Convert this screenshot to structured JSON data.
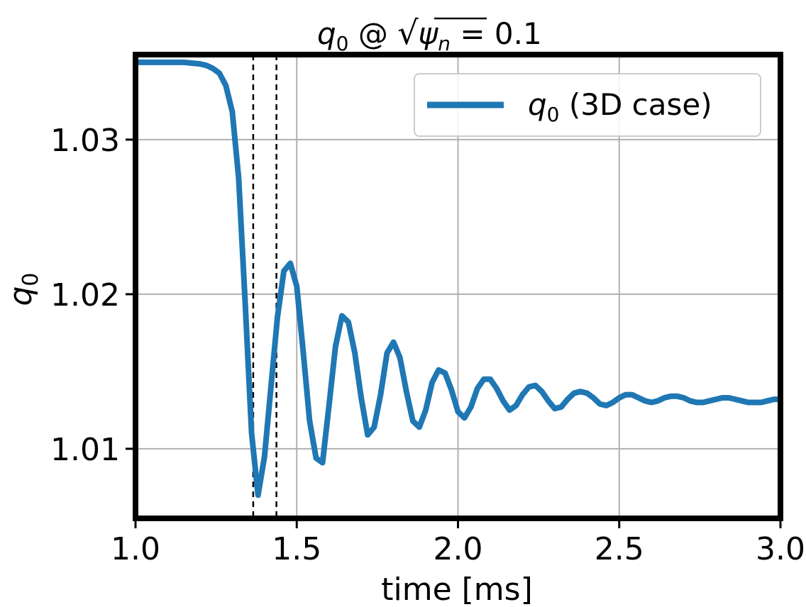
{
  "chart_data": {
    "type": "line",
    "title": "q₀ @ √ψₙ = 0.1",
    "title_parts": {
      "var": "q",
      "sub": "0",
      "at": " @ ",
      "sqrt_var": "ψ",
      "sqrt_sub": "n",
      "rest": " = 0.1"
    },
    "xlabel": "time [ms]",
    "ylabel": "q₀",
    "ylabel_parts": {
      "var": "q",
      "sub": "0"
    },
    "xlim": [
      1.0,
      3.0
    ],
    "ylim": [
      1.0055,
      1.0355
    ],
    "xticks": [
      1.0,
      1.5,
      2.0,
      2.5,
      3.0
    ],
    "xtick_labels": [
      "1.0",
      "1.5",
      "2.0",
      "2.5",
      "3.0"
    ],
    "yticks": [
      1.01,
      1.02,
      1.03
    ],
    "ytick_labels": [
      "1.01",
      "1.02",
      "1.03"
    ],
    "grid": true,
    "legend_position": "upper right",
    "vlines": [
      1.365,
      1.437
    ],
    "series": [
      {
        "name": "q₀ (3D case)",
        "name_parts": {
          "var": "q",
          "sub": "0",
          "rest": " (3D case)"
        },
        "color": "#1f77b4",
        "x": [
          1.0,
          1.05,
          1.1,
          1.15,
          1.2,
          1.22,
          1.24,
          1.26,
          1.28,
          1.3,
          1.32,
          1.34,
          1.36,
          1.38,
          1.4,
          1.42,
          1.44,
          1.46,
          1.48,
          1.5,
          1.52,
          1.54,
          1.56,
          1.58,
          1.6,
          1.62,
          1.64,
          1.66,
          1.68,
          1.7,
          1.72,
          1.74,
          1.76,
          1.78,
          1.8,
          1.82,
          1.84,
          1.86,
          1.88,
          1.9,
          1.92,
          1.94,
          1.96,
          1.98,
          2.0,
          2.02,
          2.04,
          2.06,
          2.08,
          2.1,
          2.12,
          2.14,
          2.16,
          2.18,
          2.2,
          2.22,
          2.24,
          2.26,
          2.28,
          2.3,
          2.32,
          2.34,
          2.36,
          2.38,
          2.4,
          2.42,
          2.44,
          2.46,
          2.48,
          2.5,
          2.52,
          2.54,
          2.56,
          2.58,
          2.6,
          2.62,
          2.64,
          2.66,
          2.68,
          2.7,
          2.72,
          2.74,
          2.76,
          2.78,
          2.8,
          2.82,
          2.84,
          2.86,
          2.88,
          2.9,
          2.92,
          2.94,
          2.96,
          2.98,
          3.0
        ],
        "values": [
          1.035,
          1.035,
          1.035,
          1.035,
          1.0349,
          1.0348,
          1.0346,
          1.0343,
          1.0335,
          1.0318,
          1.0275,
          1.0195,
          1.011,
          1.007,
          1.0095,
          1.014,
          1.0185,
          1.0215,
          1.022,
          1.0205,
          1.0163,
          1.0118,
          1.0094,
          1.0091,
          1.0128,
          1.0166,
          1.0186,
          1.0182,
          1.0162,
          1.0133,
          1.0109,
          1.0114,
          1.0135,
          1.0162,
          1.0169,
          1.0159,
          1.0137,
          1.0118,
          1.0114,
          1.0125,
          1.0143,
          1.0151,
          1.0149,
          1.0138,
          1.0124,
          1.012,
          1.0127,
          1.0139,
          1.0145,
          1.0145,
          1.0139,
          1.0131,
          1.0125,
          1.0128,
          1.0135,
          1.014,
          1.0141,
          1.0137,
          1.0131,
          1.0126,
          1.0127,
          1.0132,
          1.0136,
          1.0137,
          1.0136,
          1.0133,
          1.0129,
          1.0128,
          1.013,
          1.0133,
          1.0135,
          1.0135,
          1.0133,
          1.0131,
          1.013,
          1.0131,
          1.0133,
          1.0134,
          1.0134,
          1.0133,
          1.0131,
          1.013,
          1.013,
          1.0131,
          1.0132,
          1.0133,
          1.0133,
          1.0132,
          1.0131,
          1.013,
          1.013,
          1.013,
          1.0131,
          1.0132,
          1.0132
        ]
      }
    ]
  }
}
